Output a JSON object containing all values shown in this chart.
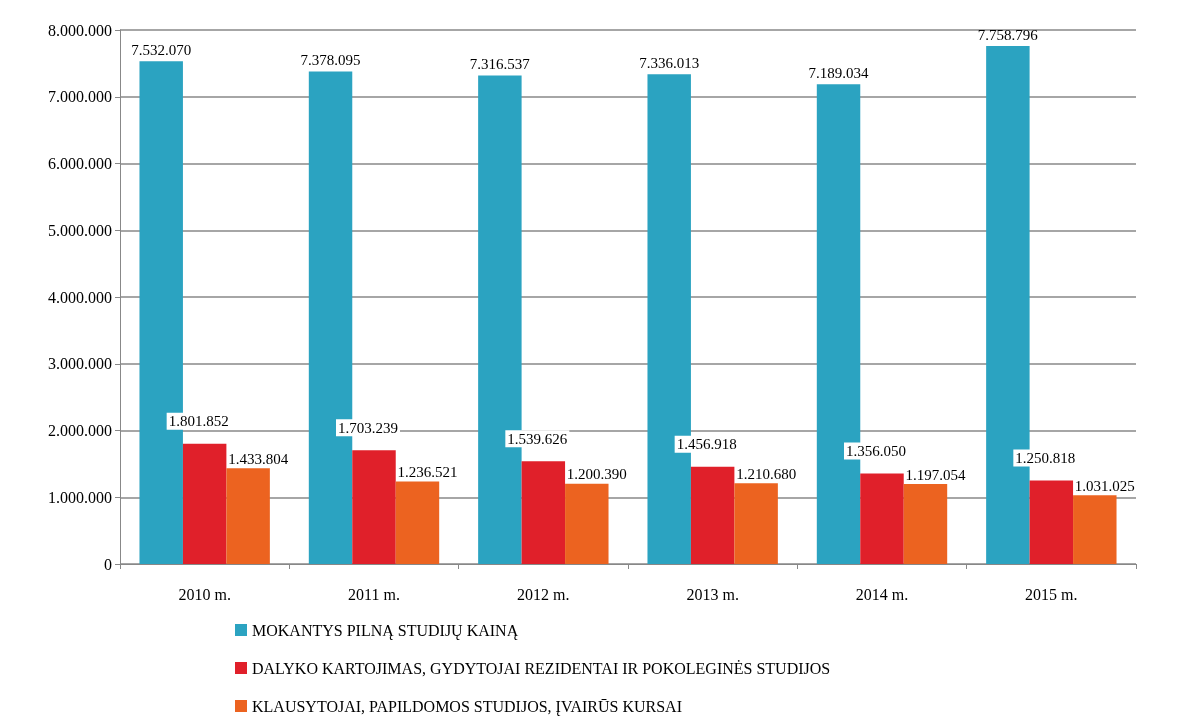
{
  "chart_data": {
    "type": "bar",
    "categories": [
      "2010 m.",
      "2011 m.",
      "2012 m.",
      "2013 m.",
      "2014 m.",
      "2015 m."
    ],
    "series": [
      {
        "name": "MOKANTYS PILNĄ STUDIJŲ KAINĄ",
        "color": "#2ba3c1",
        "values": [
          7532070,
          7378095,
          7316537,
          7336013,
          7189034,
          7758796
        ],
        "value_labels": [
          "7.532.070",
          "7.378.095",
          "7.316.537",
          "7.336.013",
          "7.189.034",
          "7.758.796"
        ]
      },
      {
        "name": "DALYKO KARTOJIMAS, GYDYTOJAI REZIDENTAI IR POKOLEGINĖS STUDIJOS",
        "color": "#e0202a",
        "values": [
          1801852,
          1703239,
          1539626,
          1456918,
          1356050,
          1250818
        ],
        "value_labels": [
          "1.801.852",
          "1.703.239",
          "1.539.626",
          "1.456.918",
          "1.356.050",
          "1.250.818"
        ]
      },
      {
        "name": "KLAUSYTOJAI, PAPILDOMOS STUDIJOS, ĮVAIRŪS KURSAI",
        "color": "#ec6320",
        "values": [
          1433804,
          1236521,
          1200390,
          1210680,
          1197054,
          1031025
        ],
        "value_labels": [
          "1.433.804",
          "1.236.521",
          "1.200.390",
          "1.210.680",
          "1.197.054",
          "1.031.025"
        ]
      }
    ],
    "ylim": [
      0,
      8000000
    ],
    "yticks": [
      {
        "value": 0,
        "label": "0"
      },
      {
        "value": 1000000,
        "label": "1.000.000"
      },
      {
        "value": 2000000,
        "label": "2.000.000"
      },
      {
        "value": 3000000,
        "label": "3.000.000"
      },
      {
        "value": 4000000,
        "label": "4.000.000"
      },
      {
        "value": 5000000,
        "label": "5.000.000"
      },
      {
        "value": 6000000,
        "label": "6.000.000"
      },
      {
        "value": 7000000,
        "label": "7.000.000"
      },
      {
        "value": 8000000,
        "label": "8.000.000"
      }
    ],
    "grid": "y",
    "legend": "bottom"
  }
}
